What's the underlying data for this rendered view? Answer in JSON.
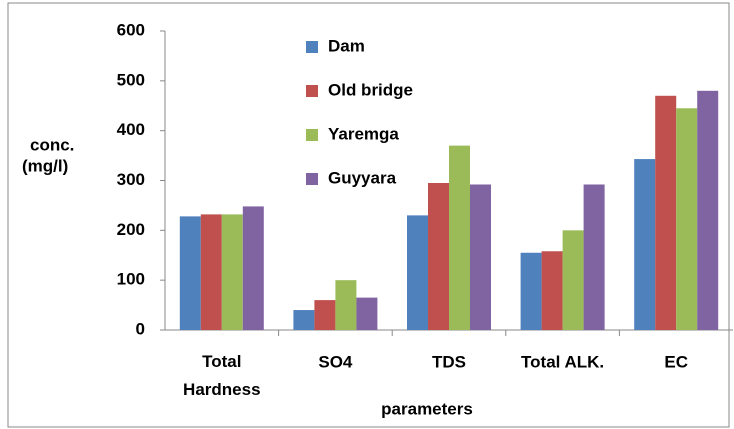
{
  "chart_data": {
    "type": "bar",
    "categories": [
      "Total Hardness",
      "SO4",
      "TDS",
      "Total ALK.",
      "EC"
    ],
    "series": [
      {
        "name": "Dam",
        "color": "#4f81bd",
        "values": [
          228,
          40,
          230,
          155,
          343
        ]
      },
      {
        "name": "Old bridge",
        "color": "#c0504d",
        "values": [
          232,
          60,
          295,
          158,
          470
        ]
      },
      {
        "name": "Yaremga",
        "color": "#9bbb59",
        "values": [
          232,
          100,
          370,
          200,
          445
        ]
      },
      {
        "name": "Guyyara",
        "color": "#8064a2",
        "values": [
          248,
          65,
          292,
          292,
          480
        ]
      }
    ],
    "ylabel": [
      "conc.",
      "(mg/l)"
    ],
    "xlabel": "parameters",
    "ylim": [
      0,
      600
    ],
    "yticks": [
      0,
      100,
      200,
      300,
      400,
      500,
      600
    ],
    "legend": "top"
  }
}
